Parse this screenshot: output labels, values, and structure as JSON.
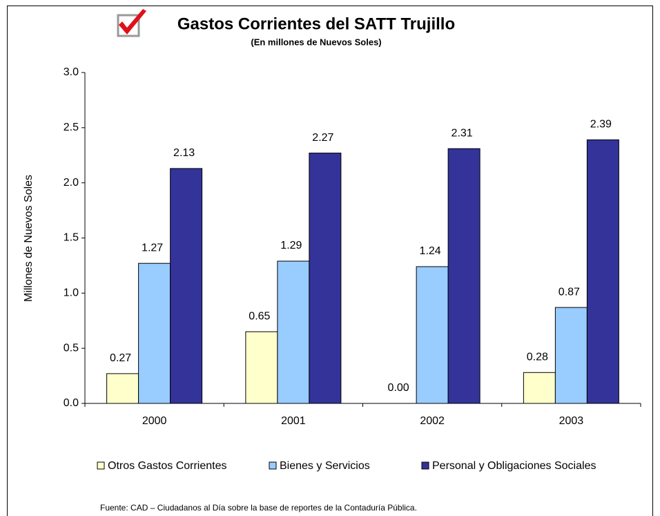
{
  "chart_data": {
    "type": "bar",
    "title": "Gastos Corrientes del SATT Trujillo",
    "subtitle": "(En millones de Nuevos Soles)",
    "y_label": "Millones de Nuevos Soles",
    "source": "Fuente: CAD – Ciudadanos al Día sobre la base de reportes de la Contaduría Pública.",
    "categories": [
      "2000",
      "2001",
      "2002",
      "2003"
    ],
    "series": [
      {
        "name": "Otros Gastos Corrientes",
        "color": "#ffffcc",
        "values": [
          0.27,
          0.65,
          0,
          0.28
        ],
        "value_labels": [
          "0.27",
          "0.65",
          "0.00",
          "0.28"
        ]
      },
      {
        "name": "Bienes y Servicios",
        "color": "#99ccff",
        "values": [
          1.27,
          1.29,
          1.24,
          0.87
        ]
      },
      {
        "name": "Personal y Obligaciones Sociales",
        "color": "#333399",
        "values": [
          2.13,
          2.27,
          2.31,
          2.39
        ]
      }
    ],
    "ylim": [
      0,
      3
    ],
    "yticks": [
      {
        "value": 0,
        "label": "0.0"
      },
      {
        "value": 0.5,
        "label": "0.5"
      },
      {
        "value": 1,
        "label": "1.0"
      },
      {
        "value": 1.5,
        "label": "1.5"
      },
      {
        "value": 2,
        "label": "2.0"
      },
      {
        "value": 2.5,
        "label": "2.5"
      },
      {
        "value": 3,
        "label": "3.0"
      }
    ],
    "legend": "bottom",
    "grid": false
  }
}
